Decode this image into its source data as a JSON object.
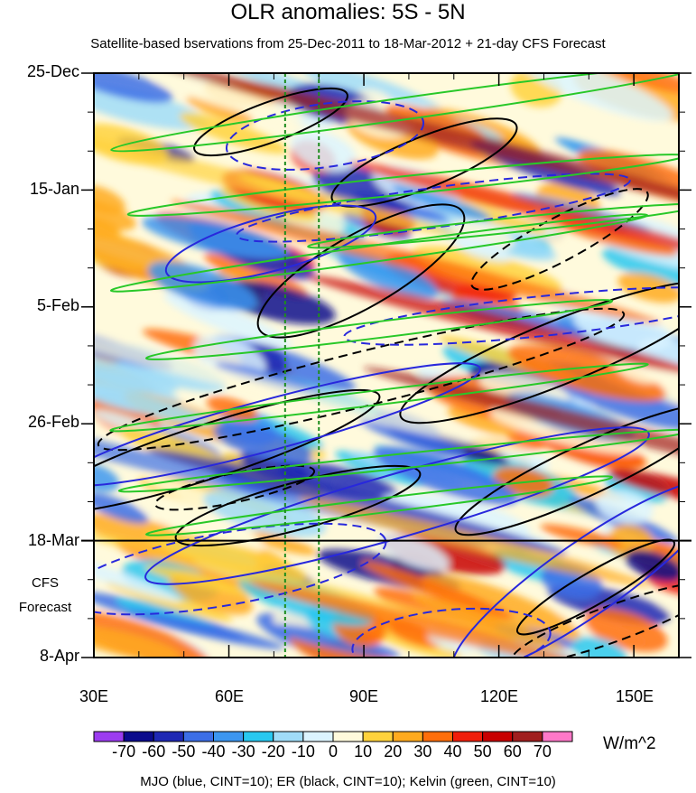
{
  "chart_data": {
    "type": "heatmap",
    "title": "OLR anomalies: 5S - 5N",
    "subtitle": "Satellite-based bservations from 25-Dec-2011 to 18-Mar-2012 + 21-day CFS Forecast",
    "x_ticks": [
      "30E",
      "60E",
      "90E",
      "120E",
      "150E"
    ],
    "x_tick_values": [
      30,
      60,
      90,
      120,
      150
    ],
    "xlim": [
      30,
      160
    ],
    "y_ticks": [
      "25-Dec",
      "15-Jan",
      "5-Feb",
      "26-Feb",
      "18-Mar",
      "8-Apr"
    ],
    "y_tick_values": [
      "2011-12-25",
      "2012-01-15",
      "2012-02-05",
      "2012-02-26",
      "2012-03-18",
      "2012-04-08"
    ],
    "ylim": [
      "2011-12-25",
      "2012-04-08"
    ],
    "forecast_label_line1": "CFS",
    "forecast_label_line2": "Forecast",
    "forecast_start": "2012-03-18",
    "reference_lines_x": [
      72.5,
      80
    ],
    "units": "W/m^2",
    "colorbar_labels": [
      "-70",
      "-60",
      "-50",
      "-40",
      "-30",
      "-20",
      "-10",
      "0",
      "10",
      "20",
      "30",
      "40",
      "50",
      "60",
      "70"
    ],
    "colorbar_colors": [
      "#9c3cf0",
      "#0a0a8c",
      "#1e28b4",
      "#3c6ee6",
      "#3c96f0",
      "#28c8f0",
      "#a0dcf8",
      "#dcf4ff",
      "#fffadc",
      "#ffd23c",
      "#ffaa1e",
      "#ff6e0a",
      "#f01e0a",
      "#c80000",
      "#a01e1e",
      "#ff78c8"
    ],
    "overlay_legend": "MJO (blue, CINT=10); ER (black, CINT=10); Kelvin (green, CINT=10)",
    "overlay_colors": {
      "MJO": "#2828dc",
      "ER": "#000000",
      "Kelvin": "#28c828"
    }
  }
}
